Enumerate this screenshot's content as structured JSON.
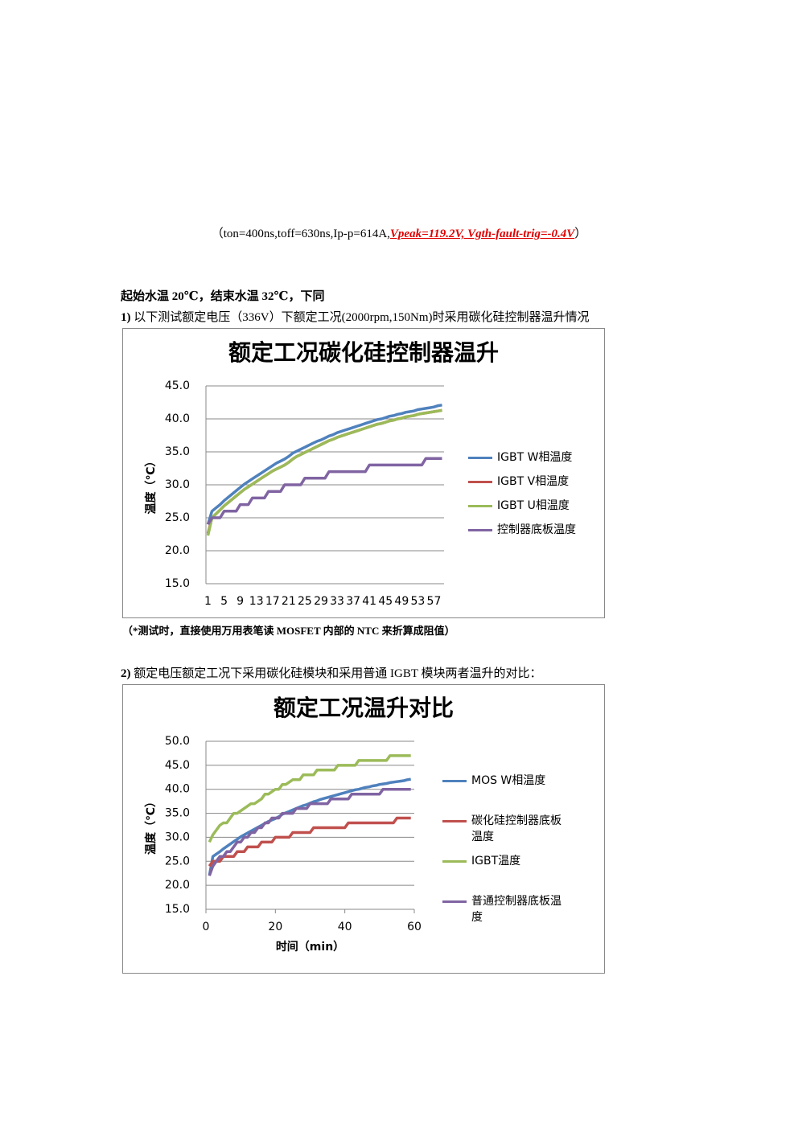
{
  "caption": {
    "prefix": "（ton=400ns,toff=630ns,Ip-p=614A,",
    "highlight": "Vpeak=119.2V, Vgth-fault-trig=-0.4V",
    "suffix": "）"
  },
  "heading": "起始水温 20℃，结束水温 32℃，下同",
  "items": [
    {
      "number": "1)",
      "text": "以下测试额定电压（336V）下额定工况(2000rpm,150Nm)时采用碳化硅控制器温升情况"
    },
    {
      "number": "2)",
      "text": "额定电压额定工况下采用碳化硅模块和采用普通 IGBT 模块两者温升的对比："
    }
  ],
  "note": "（*测试时，直接使用万用表笔读 MOSFET 内部的 NTC 来折算成阻值）",
  "chart_data": [
    {
      "type": "line",
      "title": "额定工况碳化硅控制器温升",
      "ylabel": "温度（℃）",
      "grid": true,
      "legend": "right",
      "categories": [
        1,
        null,
        null,
        null,
        5,
        null,
        null,
        null,
        9,
        null,
        null,
        null,
        13,
        null,
        null,
        null,
        17,
        null,
        null,
        null,
        21,
        null,
        null,
        null,
        25,
        null,
        null,
        null,
        29,
        null,
        null,
        null,
        33,
        null,
        null,
        null,
        37,
        null,
        null,
        null,
        41,
        null,
        null,
        null,
        45,
        null,
        null,
        null,
        49,
        null,
        null,
        null,
        53,
        null,
        null,
        null,
        57,
        null,
        null
      ],
      "ylim": [
        15,
        45
      ],
      "yticks": [
        {
          "value": 15,
          "label": "15.0"
        },
        {
          "value": 20,
          "label": "20.0"
        },
        {
          "value": 25,
          "label": "25.0"
        },
        {
          "value": 30,
          "label": "30.0"
        },
        {
          "value": 35,
          "label": "35.0"
        },
        {
          "value": 40,
          "label": "40.0"
        },
        {
          "value": 45,
          "label": "45.0"
        }
      ],
      "series": [
        {
          "name": "IGBT W相温度",
          "color": "#4f81bd",
          "values": [
            24,
            26,
            26.5,
            27,
            27.6,
            28.1,
            28.6,
            29.1,
            29.6,
            30.1,
            30.5,
            30.9,
            31.3,
            31.7,
            32.1,
            32.5,
            32.9,
            33.3,
            33.6,
            33.9,
            34.3,
            34.8,
            35.1,
            35.4,
            35.7,
            36,
            36.3,
            36.6,
            36.8,
            37.1,
            37.4,
            37.6,
            37.9,
            38.1,
            38.3,
            38.5,
            38.7,
            38.9,
            39.1,
            39.3,
            39.5,
            39.7,
            39.9,
            40,
            40.2,
            40.4,
            40.5,
            40.7,
            40.8,
            41,
            41.1,
            41.2,
            41.4,
            41.5,
            41.6,
            41.7,
            41.8,
            42,
            42.1
          ]
        },
        {
          "name": "IGBT V相温度",
          "color": "#c0504d",
          "values": [
            22.6,
            25,
            25.6,
            26.2,
            26.8,
            27.3,
            27.8,
            28.3,
            28.8,
            29.3,
            29.7,
            30.1,
            30.5,
            30.9,
            31.3,
            31.7,
            32.1,
            32.4,
            32.7,
            33,
            33.4,
            33.9,
            34.3,
            34.6,
            34.9,
            35.2,
            35.5,
            35.8,
            36.1,
            36.4,
            36.7,
            36.9,
            37.2,
            37.4,
            37.6,
            37.8,
            38,
            38.2,
            38.4,
            38.6,
            38.8,
            39,
            39.2,
            39.3,
            39.5,
            39.7,
            39.8,
            40,
            40.1,
            40.3,
            40.4,
            40.5,
            40.7,
            40.8,
            40.9,
            41,
            41.1,
            41.2,
            41.3
          ]
        },
        {
          "name": "IGBT U相温度",
          "color": "#9bbb59",
          "values": [
            22.3,
            25,
            25.6,
            26.2,
            26.8,
            27.3,
            27.8,
            28.3,
            28.8,
            29.3,
            29.7,
            30.1,
            30.5,
            30.9,
            31.3,
            31.7,
            32.1,
            32.4,
            32.7,
            33,
            33.4,
            33.9,
            34.3,
            34.6,
            34.9,
            35.2,
            35.5,
            35.8,
            36.1,
            36.4,
            36.7,
            36.9,
            37.2,
            37.4,
            37.6,
            37.8,
            38,
            38.2,
            38.4,
            38.6,
            38.8,
            39,
            39.2,
            39.3,
            39.5,
            39.7,
            39.8,
            40,
            40.1,
            40.3,
            40.4,
            40.5,
            40.7,
            40.8,
            40.9,
            41,
            41.1,
            41.2,
            41.3
          ]
        },
        {
          "name": "控制器底板温度",
          "color": "#8064a2",
          "values": [
            24,
            25,
            25,
            25,
            26,
            26,
            26,
            26,
            27,
            27,
            27,
            28,
            28,
            28,
            28,
            29,
            29,
            29,
            29,
            30,
            30,
            30,
            30,
            30,
            31,
            31,
            31,
            31,
            31,
            31,
            32,
            32,
            32,
            32,
            32,
            32,
            32,
            32,
            32,
            32,
            33,
            33,
            33,
            33,
            33,
            33,
            33,
            33,
            33,
            33,
            33,
            33,
            33,
            33,
            34,
            34,
            34,
            34,
            34
          ]
        }
      ]
    },
    {
      "type": "line",
      "title": "额定工况温升对比",
      "ylabel": "温度（℃）",
      "xlabel": "时间（min）",
      "grid": true,
      "legend": "right",
      "x": [
        1,
        2,
        3,
        4,
        5,
        6,
        7,
        8,
        9,
        10,
        11,
        12,
        13,
        14,
        15,
        16,
        17,
        18,
        19,
        20,
        21,
        22,
        23,
        24,
        25,
        26,
        27,
        28,
        29,
        30,
        31,
        32,
        33,
        34,
        35,
        36,
        37,
        38,
        39,
        40,
        41,
        42,
        43,
        44,
        45,
        46,
        47,
        48,
        49,
        50,
        51,
        52,
        53,
        54,
        55,
        56,
        57,
        58,
        59
      ],
      "xlim": [
        0,
        60
      ],
      "xticks": [
        0,
        20,
        40,
        60
      ],
      "ylim": [
        15,
        50
      ],
      "yticks": [
        {
          "value": 15,
          "label": "15.0"
        },
        {
          "value": 20,
          "label": "20.0"
        },
        {
          "value": 25,
          "label": "25.0"
        },
        {
          "value": 30,
          "label": "30.0"
        },
        {
          "value": 35,
          "label": "35.0"
        },
        {
          "value": 40,
          "label": "40.0"
        },
        {
          "value": 45,
          "label": "45.0"
        },
        {
          "value": 50,
          "label": "50.0"
        }
      ],
      "series": [
        {
          "name": "MOS W相温度",
          "color": "#4f81bd",
          "values": [
            22,
            26,
            26.5,
            27,
            27.6,
            28.1,
            28.6,
            29.1,
            29.6,
            30.1,
            30.5,
            30.9,
            31.3,
            31.7,
            32.1,
            32.5,
            32.9,
            33.3,
            33.6,
            33.9,
            34.3,
            34.8,
            35.1,
            35.4,
            35.7,
            36,
            36.3,
            36.6,
            36.8,
            37.1,
            37.4,
            37.6,
            37.9,
            38.1,
            38.3,
            38.5,
            38.7,
            38.9,
            39.1,
            39.3,
            39.5,
            39.7,
            39.9,
            40,
            40.2,
            40.4,
            40.5,
            40.7,
            40.8,
            41,
            41.1,
            41.2,
            41.4,
            41.5,
            41.6,
            41.7,
            41.8,
            42,
            42.1
          ]
        },
        {
          "name": "碳化硅控制器底板温度",
          "color": "#c0504d",
          "values": [
            24,
            25,
            25,
            25,
            26,
            26,
            26,
            26,
            27,
            27,
            27,
            28,
            28,
            28,
            28,
            29,
            29,
            29,
            29,
            30,
            30,
            30,
            30,
            30,
            31,
            31,
            31,
            31,
            31,
            31,
            32,
            32,
            32,
            32,
            32,
            32,
            32,
            32,
            32,
            32,
            33,
            33,
            33,
            33,
            33,
            33,
            33,
            33,
            33,
            33,
            33,
            33,
            33,
            33,
            34,
            34,
            34,
            34,
            34
          ]
        },
        {
          "name": "IGBT温度",
          "color": "#9bbb59",
          "values": [
            29,
            30.5,
            31.5,
            32.5,
            33,
            33,
            34,
            35,
            35,
            35.5,
            36,
            36.5,
            37,
            37,
            37.5,
            38,
            39,
            39,
            39.5,
            40,
            40,
            41,
            41,
            41.5,
            42,
            42,
            42,
            43,
            43,
            43,
            43,
            44,
            44,
            44,
            44,
            44,
            44,
            45,
            45,
            45,
            45,
            45,
            45,
            46,
            46,
            46,
            46,
            46,
            46,
            46,
            46,
            46,
            47,
            47,
            47,
            47,
            47,
            47,
            47
          ]
        },
        {
          "name": "普通控制器底板温度",
          "color": "#8064a2",
          "values": [
            22,
            24,
            25,
            26,
            26,
            27,
            27,
            28,
            29,
            29,
            30,
            30,
            31,
            31,
            32,
            32,
            33,
            33,
            34,
            34,
            34,
            35,
            35,
            35,
            35,
            36,
            36,
            36,
            36,
            37,
            37,
            37,
            37,
            37,
            37,
            38,
            38,
            38,
            38,
            38,
            38,
            39,
            39,
            39,
            39,
            39,
            39,
            39,
            39,
            39,
            40,
            40,
            40,
            40,
            40,
            40,
            40,
            40,
            40
          ]
        }
      ]
    }
  ]
}
